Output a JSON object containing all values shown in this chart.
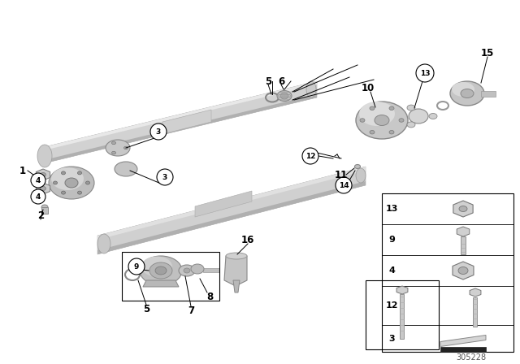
{
  "bg_color": "#ffffff",
  "diagram_number": "305228",
  "figsize": [
    6.4,
    4.48
  ],
  "dpi": 100,
  "shaft_color_light": "#d8d8d8",
  "shaft_color_mid": "#c0c0c0",
  "shaft_color_dark": "#a0a0a0",
  "part_color": "#c8c8c8",
  "part_dark": "#888888",
  "part_highlight": "#e8e8e8",
  "black": "#000000",
  "white": "#ffffff"
}
